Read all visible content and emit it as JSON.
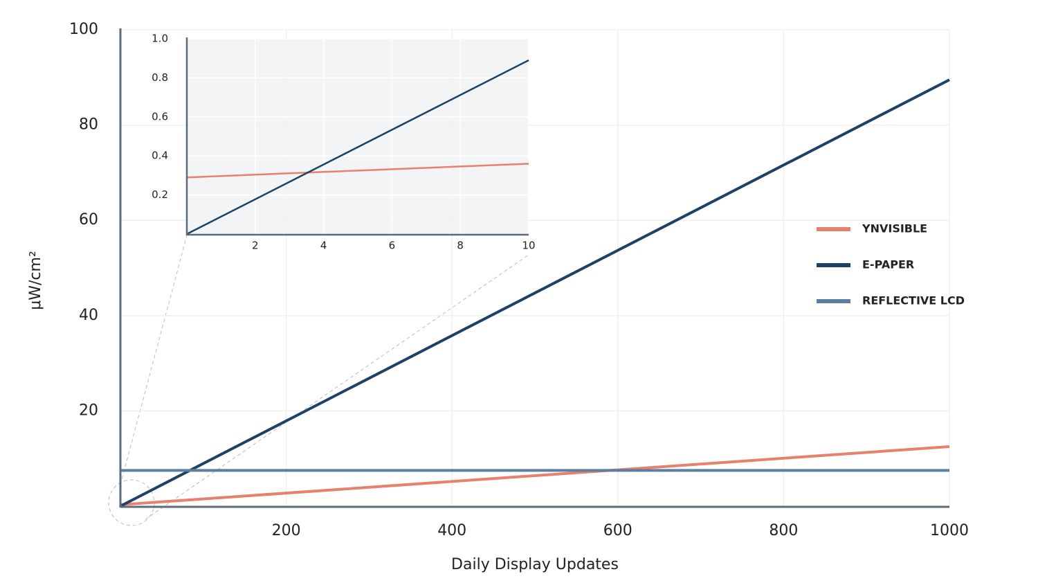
{
  "chart_data": [
    {
      "type": "line",
      "x_label": "Daily Display Updates",
      "y_label": "μW/cm²",
      "x": [
        0,
        1000
      ],
      "xlim": [
        0,
        1000
      ],
      "ylim": [
        0,
        100
      ],
      "xticks": [
        200,
        400,
        600,
        800,
        1000
      ],
      "yticks": [
        20,
        40,
        60,
        80,
        100
      ],
      "grid": true,
      "legend": "right",
      "series": [
        {
          "name": "YNVISIBLE",
          "color": "#e8806e",
          "values": [
            0.3,
            12.5
          ]
        },
        {
          "name": "E-PAPER",
          "color": "#1d4266",
          "values": [
            0,
            89.5
          ]
        },
        {
          "name": "REFLECTIVE LCD",
          "color": "#5a7fa0",
          "values": [
            7.5,
            7.5
          ]
        }
      ]
    },
    {
      "type": "line",
      "x": [
        0,
        10
      ],
      "xlim": [
        0,
        10
      ],
      "ylim": [
        0,
        1
      ],
      "xticks": [
        2,
        4,
        6,
        8,
        10
      ],
      "yticks": [
        0.2,
        0.4,
        0.6,
        0.8,
        {
          "value": 1,
          "label": "1.0"
        }
      ],
      "grid": true,
      "series": [
        {
          "color": "#e8806e",
          "values": [
            0.29,
            0.36
          ]
        },
        {
          "color": "#1d4266",
          "values": [
            0,
            0.89
          ]
        }
      ]
    }
  ]
}
